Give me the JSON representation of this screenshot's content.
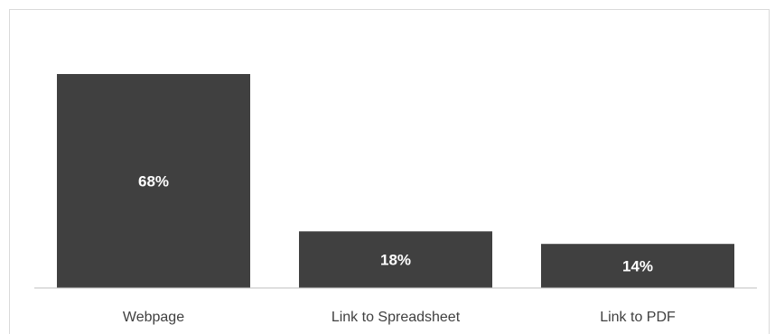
{
  "chart_data": {
    "type": "bar",
    "categories": [
      "Webpage",
      "Link to Spreadsheet",
      "Link to PDF"
    ],
    "values": [
      68,
      18,
      14
    ],
    "value_labels": [
      "68%",
      "18%",
      "14%"
    ],
    "title": "",
    "xlabel": "",
    "ylabel": "",
    "ylim": [
      0,
      80
    ],
    "grid": false,
    "legend": "none",
    "bar_color": "#404040",
    "label_color": "#ffffff"
  }
}
